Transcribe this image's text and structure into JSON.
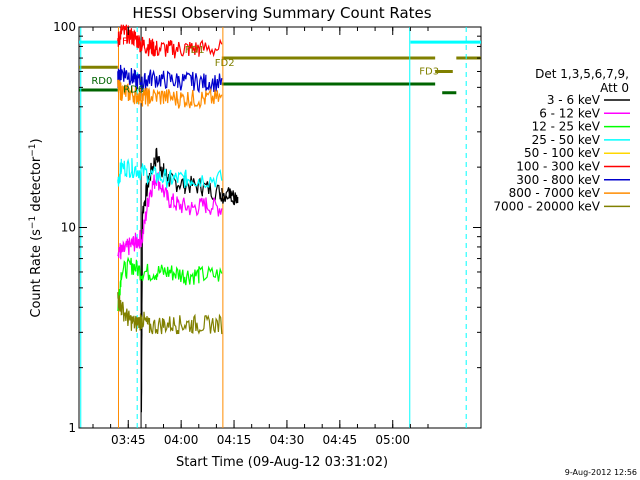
{
  "chart_data": {
    "type": "line",
    "title": "HESSI Observing Summary Count Rates",
    "xlabel": "Start Time (09-Aug-12 03:31:02)",
    "ylabel": "Count Rate (s⁻¹ detector⁻¹)",
    "y_scale": "log",
    "ylim": [
      1,
      100
    ],
    "y_ticks": [
      "1",
      "10",
      "100"
    ],
    "x_range_minutes_after_0331": [
      0,
      114
    ],
    "x_ticks": [
      "03:45",
      "04:00",
      "04:15",
      "04:30",
      "04:45",
      "05:00"
    ],
    "legend_header": [
      "Det 1,3,5,6,7,9,",
      "Att 0"
    ],
    "footer_date": "9-Aug-2012 12:56",
    "series": [
      {
        "name": "3 - 6 keV",
        "color": "#000000",
        "x": [
          17.7,
          18,
          20,
          22,
          24,
          26,
          30,
          35,
          40,
          45,
          40.5
        ],
        "y": [
          1.2,
          12,
          18,
          23,
          19,
          17,
          16.5,
          16,
          15,
          14.5,
          14.5
        ]
      },
      {
        "name": "6 - 12 keV",
        "color": "#ff00ff",
        "x": [
          11,
          12,
          14,
          16,
          18,
          20,
          22,
          25,
          28,
          32,
          36,
          40.5
        ],
        "y": [
          8,
          7.5,
          8,
          8.5,
          9,
          15,
          18,
          14,
          13,
          12.5,
          13,
          12.5
        ]
      },
      {
        "name": "12 - 25 keV",
        "color": "#00ff00",
        "x": [
          11,
          12,
          15,
          18,
          22,
          26,
          30,
          34,
          40.5
        ],
        "y": [
          4,
          6,
          6.5,
          6,
          6,
          6,
          5.8,
          5.8,
          5.8
        ]
      },
      {
        "name": "25 - 50 keV",
        "color": "#00ffff",
        "x": [
          11,
          12,
          15,
          18,
          22,
          26,
          30,
          34,
          40.5
        ],
        "y": [
          17,
          20,
          20,
          19,
          18,
          17.5,
          17.5,
          17.5,
          17.5
        ]
      },
      {
        "name": "50 - 100 keV",
        "color": "#ffd700",
        "x": [],
        "y": []
      },
      {
        "name": "100 - 300 keV",
        "color": "#ff0000",
        "x": [
          11,
          12,
          14,
          16,
          18,
          20,
          22,
          26,
          30,
          34,
          40.5
        ],
        "y": [
          85,
          95,
          92,
          88,
          82,
          80,
          78,
          78,
          78,
          78,
          78
        ]
      },
      {
        "name": "300 - 800 keV",
        "color": "#0000cc",
        "x": [
          11,
          12,
          14,
          16,
          18,
          20,
          24,
          28,
          32,
          36,
          40.5
        ],
        "y": [
          55,
          60,
          58,
          55,
          52,
          56,
          55,
          54,
          54,
          53,
          53
        ]
      },
      {
        "name": "800 - 7000 keV",
        "color": "#ff8c00",
        "x": [
          11,
          12,
          14,
          16,
          18,
          20,
          24,
          28,
          32,
          36,
          40.5
        ],
        "y": [
          50,
          48,
          47,
          46,
          45,
          45,
          45,
          44,
          44,
          44,
          44
        ]
      },
      {
        "name": "7000 - 20000 keV",
        "color": "#808000",
        "x": [
          11,
          12,
          14,
          16,
          18,
          20,
          24,
          28,
          32,
          36,
          40.5
        ],
        "y": [
          4.5,
          4,
          3.5,
          3.3,
          3.5,
          3.2,
          3.3,
          3.3,
          3.3,
          3.3,
          3.3
        ]
      }
    ],
    "annotations": [
      {
        "text": "FD1",
        "color": "#808000"
      },
      {
        "text": "FD2",
        "color": "#808000"
      },
      {
        "text": "FD3",
        "color": "#808000"
      },
      {
        "text": "RD0",
        "color": "#006400"
      },
      {
        "text": "RD6",
        "color": "#006400"
      },
      {
        "text": "F",
        "color": "#ff0000"
      }
    ]
  }
}
